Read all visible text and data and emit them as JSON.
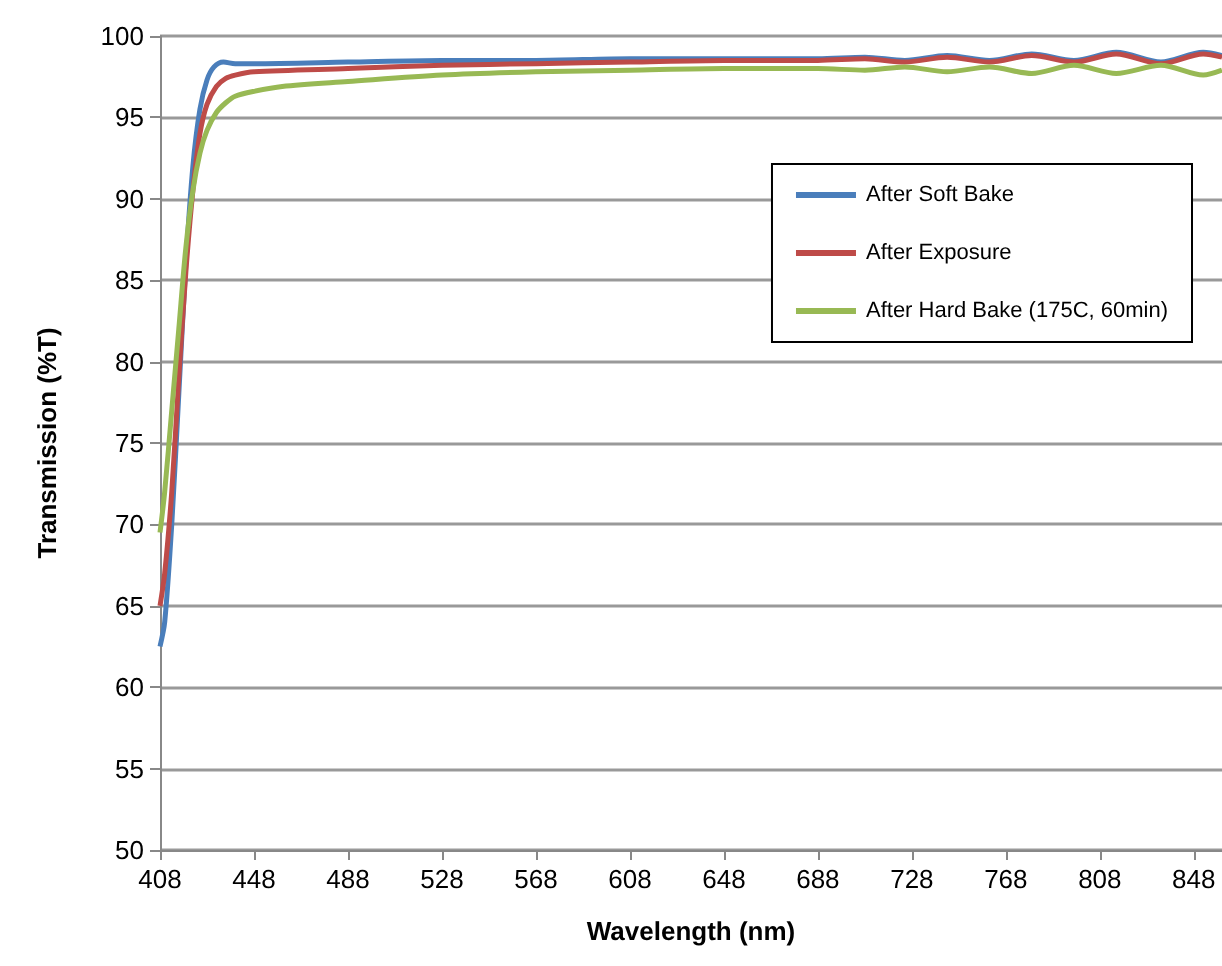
{
  "chart_data": {
    "type": "line",
    "xlabel": "Wavelength (nm)",
    "ylabel": "Transmission (%T)",
    "xlim": [
      408,
      860
    ],
    "xticks": [
      408,
      448,
      488,
      528,
      568,
      608,
      648,
      688,
      728,
      768,
      808,
      848
    ],
    "ylim": [
      50,
      100
    ],
    "yticks": [
      50,
      55,
      60,
      65,
      70,
      75,
      80,
      85,
      90,
      95,
      100
    ],
    "grid": "y",
    "legend": "right",
    "marker": "none",
    "line_style": "solid",
    "series": [
      {
        "name": "After Soft Bake",
        "color": "#4a7ebb",
        "x": [
          408,
          410,
          413,
          416,
          419,
          422,
          425,
          428,
          431,
          435,
          440,
          448,
          488,
          528,
          568,
          608,
          648,
          688,
          708,
          725,
          743,
          761,
          779,
          797,
          815,
          834,
          852,
          860
        ],
        "values": [
          62.5,
          64,
          70,
          78,
          86,
          92,
          95.5,
          97.3,
          98.1,
          98.4,
          98.3,
          98.3,
          98.4,
          98.5,
          98.5,
          98.6,
          98.6,
          98.6,
          98.7,
          98.5,
          98.8,
          98.5,
          98.9,
          98.5,
          99.0,
          98.4,
          99.0,
          98.8
        ]
      },
      {
        "name": "After Exposure",
        "color": "#be4b48",
        "x": [
          408,
          410,
          413,
          416,
          419,
          422,
          425,
          428,
          432,
          436,
          440,
          448,
          488,
          528,
          568,
          608,
          648,
          688,
          708,
          725,
          743,
          761,
          779,
          797,
          815,
          834,
          852,
          860
        ],
        "values": [
          65,
          67,
          72,
          79,
          85.5,
          90.5,
          94,
          95.8,
          96.9,
          97.4,
          97.6,
          97.8,
          98.0,
          98.2,
          98.3,
          98.4,
          98.5,
          98.5,
          98.6,
          98.4,
          98.7,
          98.4,
          98.8,
          98.4,
          98.9,
          98.3,
          98.9,
          98.7
        ]
      },
      {
        "name": "After Hard Bake (175C, 60min)",
        "color": "#98b954",
        "x": [
          408,
          410,
          413,
          416,
          419,
          422,
          425,
          428,
          432,
          436,
          440,
          448,
          460,
          488,
          528,
          568,
          608,
          648,
          688,
          708,
          725,
          743,
          761,
          779,
          797,
          815,
          834,
          852,
          860
        ],
        "values": [
          69.5,
          72,
          77,
          82,
          87,
          90.5,
          92.8,
          94.2,
          95.3,
          95.9,
          96.3,
          96.6,
          96.9,
          97.2,
          97.6,
          97.8,
          97.9,
          98.0,
          98.0,
          97.9,
          98.1,
          97.8,
          98.1,
          97.7,
          98.2,
          97.7,
          98.2,
          97.6,
          97.9
        ]
      }
    ]
  }
}
